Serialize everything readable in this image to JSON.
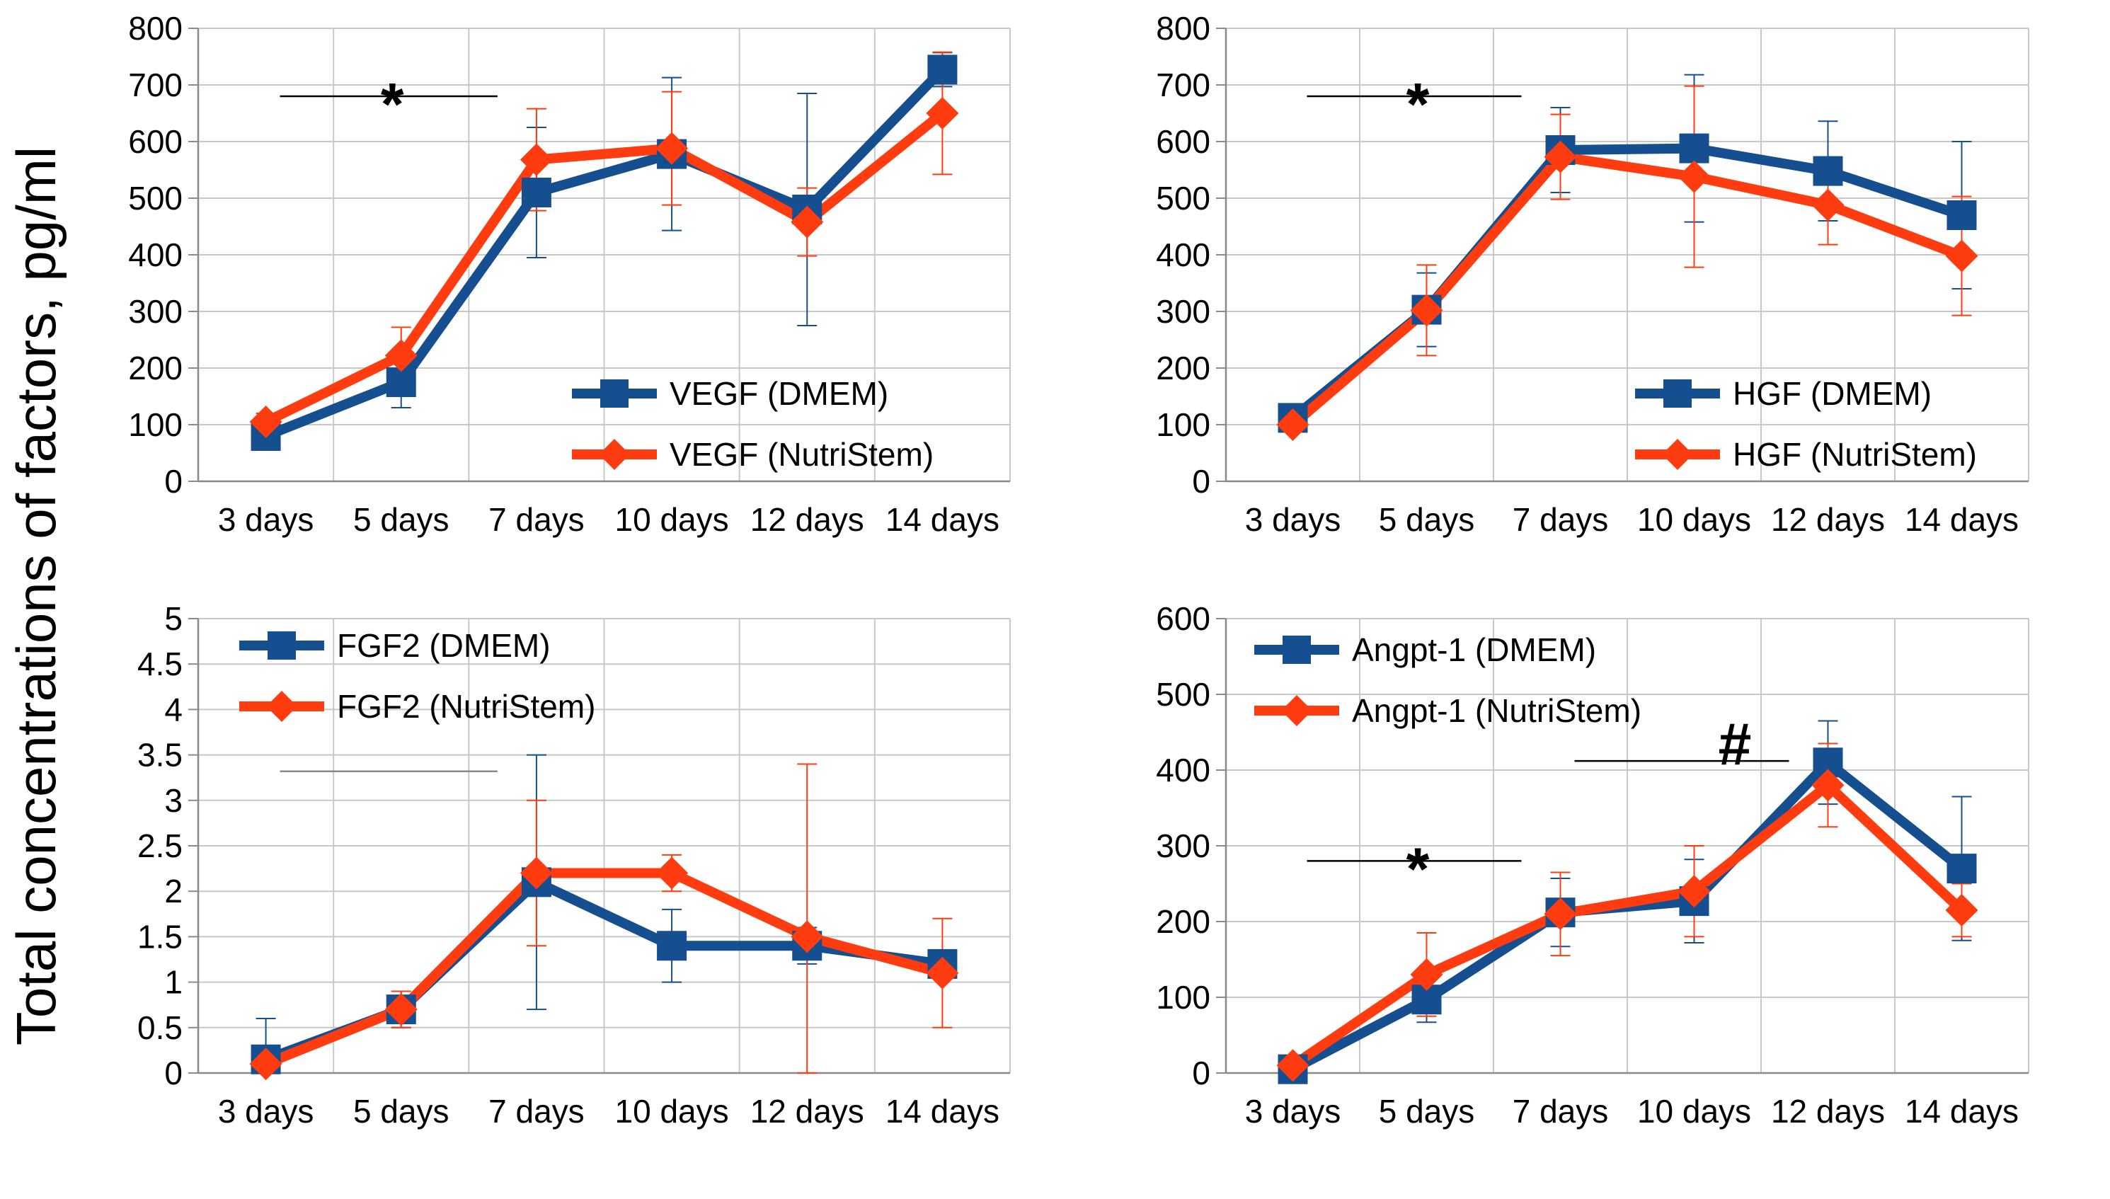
{
  "y_axis_label": "Total concentrations of factors, pg/ml",
  "colors": {
    "dmem": "#154f8f",
    "nutristem": "#ff3c0f",
    "grid": "#c8c8c8",
    "axis": "#8a8a8a"
  },
  "chart_data": [
    {
      "type": "line",
      "title": "",
      "xlabel": "",
      "ylabel": "Total concentrations of factors, pg/ml",
      "categories": [
        "3 days",
        "5 days",
        "7 days",
        "10 days",
        "12 days",
        "14 days"
      ],
      "ylim": [
        0,
        800
      ],
      "yticks": [
        "0",
        "100",
        "200",
        "300",
        "400",
        "500",
        "600",
        "700",
        "800"
      ],
      "legend_position": "bottom-right",
      "series": [
        {
          "name": "VEGF (DMEM)",
          "marker": "square",
          "values": [
            80,
            175,
            510,
            578,
            480,
            727
          ],
          "errors": [
            0,
            45,
            115,
            135,
            205,
            30
          ]
        },
        {
          "name": "VEGF (NutriStem)",
          "marker": "diamond",
          "values": [
            105,
            222,
            568,
            588,
            458,
            650
          ],
          "errors": [
            15,
            50,
            90,
            100,
            60,
            108
          ]
        }
      ],
      "annotations": [
        {
          "text": "*",
          "from": "3 days",
          "to": "7 days",
          "y": 680
        }
      ]
    },
    {
      "type": "line",
      "title": "",
      "xlabel": "",
      "ylabel": "",
      "categories": [
        "3 days",
        "5 days",
        "7 days",
        "10 days",
        "12 days",
        "14 days"
      ],
      "ylim": [
        0,
        800
      ],
      "yticks": [
        "0",
        "100",
        "200",
        "300",
        "400",
        "500",
        "600",
        "700",
        "800"
      ],
      "legend_position": "bottom-right",
      "series": [
        {
          "name": "HGF (DMEM)",
          "marker": "square",
          "values": [
            112,
            303,
            585,
            588,
            548,
            470
          ],
          "errors": [
            10,
            65,
            75,
            130,
            88,
            130
          ]
        },
        {
          "name": "HGF (NutriStem)",
          "marker": "diamond",
          "values": [
            100,
            302,
            573,
            538,
            488,
            398
          ],
          "errors": [
            10,
            80,
            75,
            160,
            70,
            105
          ]
        }
      ],
      "annotations": [
        {
          "text": "*",
          "from": "3 days",
          "to": "7 days",
          "y": 680
        }
      ]
    },
    {
      "type": "line",
      "title": "",
      "xlabel": "",
      "ylabel": "",
      "categories": [
        "3 days",
        "5 days",
        "7 days",
        "10 days",
        "12 days",
        "14 days"
      ],
      "ylim": [
        0,
        5
      ],
      "yticks": [
        "0",
        "0.5",
        "1",
        "1.5",
        "2",
        "2.5",
        "3",
        "3.5",
        "4",
        "4.5",
        "5"
      ],
      "legend_position": "top-left",
      "series": [
        {
          "name": "FGF2 (DMEM)",
          "marker": "square",
          "values": [
            0.15,
            0.7,
            2.1,
            1.4,
            1.4,
            1.2
          ],
          "errors": [
            0.45,
            0.2,
            1.4,
            0.4,
            0.2,
            0.1
          ]
        },
        {
          "name": "FGF2 (NutriStem)",
          "marker": "diamond",
          "values": [
            0.1,
            0.7,
            2.2,
            2.2,
            1.5,
            1.1
          ],
          "errors": [
            0.05,
            0.2,
            0.8,
            0.2,
            1.9,
            0.6
          ]
        }
      ],
      "annotations": [
        {
          "text": "",
          "from": "3 days",
          "to": "7 days",
          "y": 3.32
        }
      ]
    },
    {
      "type": "line",
      "title": "",
      "xlabel": "",
      "ylabel": "",
      "categories": [
        "3 days",
        "5 days",
        "7 days",
        "10 days",
        "12 days",
        "14 days"
      ],
      "ylim": [
        0,
        600
      ],
      "yticks": [
        "0",
        "100",
        "200",
        "300",
        "400",
        "500",
        "600"
      ],
      "legend_position": "top-left",
      "series": [
        {
          "name": "Angpt-1 (DMEM)",
          "marker": "square",
          "values": [
            5,
            97,
            212,
            227,
            410,
            270
          ],
          "errors": [
            5,
            30,
            45,
            55,
            55,
            95
          ]
        },
        {
          "name": "Angpt-1 (NutriStem)",
          "marker": "diamond",
          "values": [
            10,
            130,
            210,
            240,
            380,
            215
          ],
          "errors": [
            5,
            55,
            55,
            60,
            55,
            35
          ]
        }
      ],
      "annotations": [
        {
          "text": "*",
          "from": "3 days",
          "to": "7 days",
          "y": 280
        },
        {
          "text": "#",
          "from": "7 days",
          "to": "12 days",
          "y": 412
        }
      ]
    }
  ]
}
